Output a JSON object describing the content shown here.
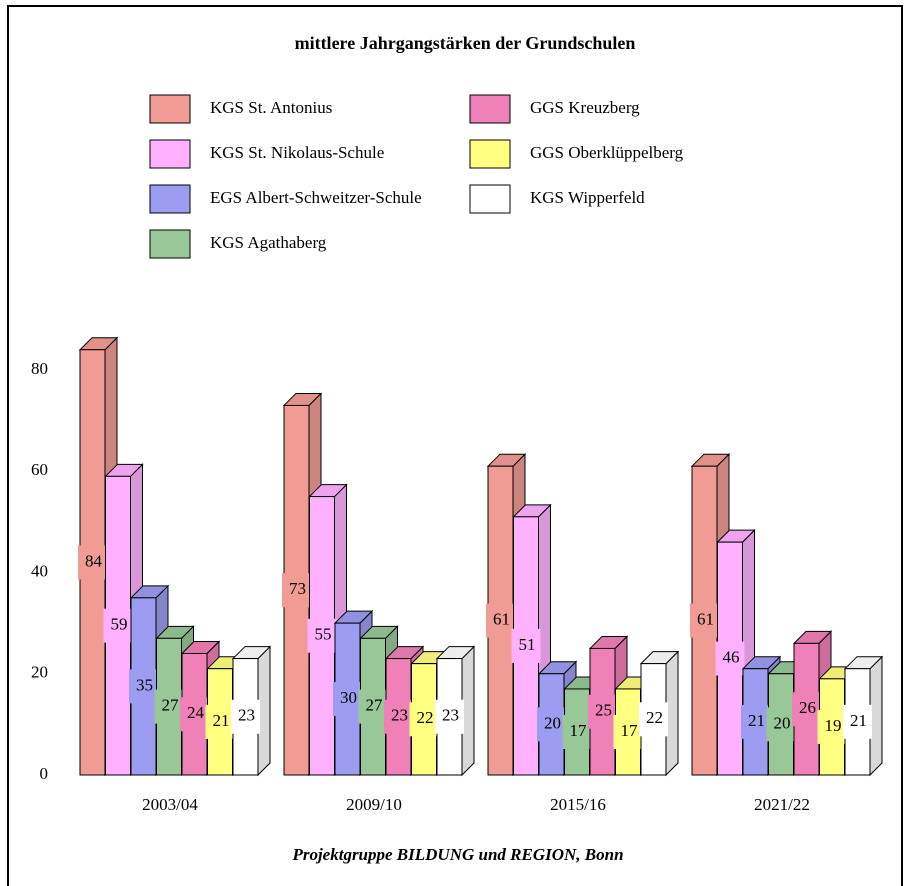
{
  "chart_data": {
    "type": "bar3d",
    "title": "mittlere Jahrgangstärken der Grundschulen",
    "footer": "Projektgruppe BILDUNG und REGION, Bonn",
    "categories": [
      "2003/04",
      "2009/10",
      "2015/16",
      "2021/22"
    ],
    "series": [
      {
        "name": "KGS St. Antonius",
        "color": "#f09c94",
        "values": [
          84,
          73,
          61,
          61
        ]
      },
      {
        "name": "KGS St. Nikolaus-Schule",
        "color": "#ffb0ff",
        "values": [
          59,
          55,
          51,
          46
        ]
      },
      {
        "name": "EGS Albert-Schweitzer-Schule",
        "color": "#9c9cf0",
        "values": [
          35,
          30,
          20,
          21
        ]
      },
      {
        "name": "KGS Agathaberg",
        "color": "#98c898",
        "values": [
          27,
          27,
          17,
          20
        ]
      },
      {
        "name": "GGS Kreuzberg",
        "color": "#f080b8",
        "values": [
          24,
          23,
          25,
          26
        ]
      },
      {
        "name": "GGS Oberklüppelberg",
        "color": "#ffff80",
        "values": [
          21,
          22,
          17,
          19
        ]
      },
      {
        "name": "KGS Wipperfeld",
        "color": "#ffffff",
        "values": [
          23,
          23,
          22,
          21
        ]
      }
    ],
    "ylim": [
      0,
      80
    ],
    "yticks": [
      0,
      20,
      40,
      60,
      80
    ],
    "grid": false
  }
}
